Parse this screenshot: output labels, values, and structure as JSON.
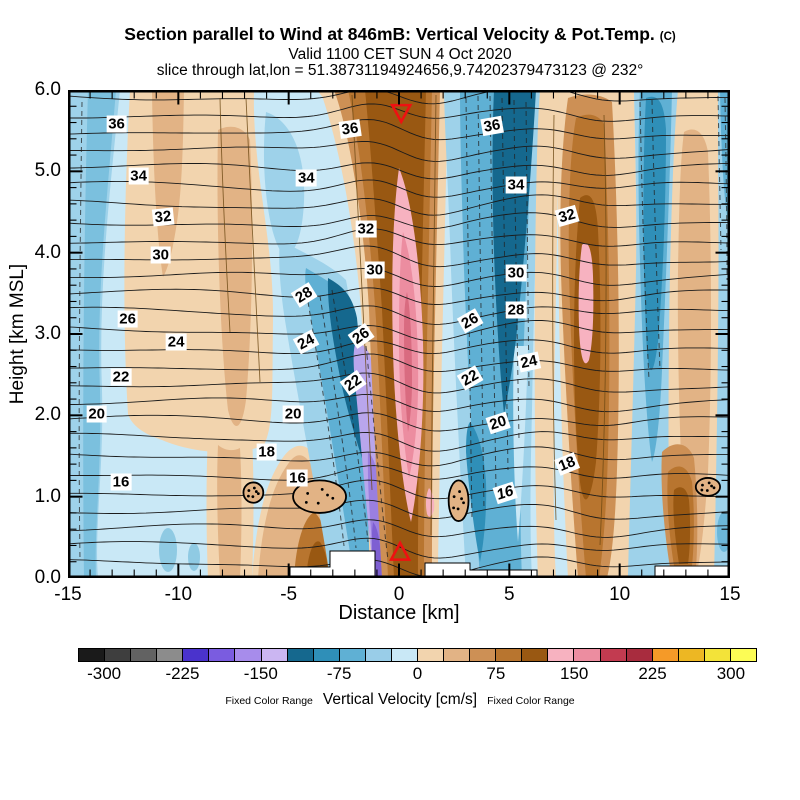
{
  "header": {
    "title": "Section parallel to Wind at 846mB: Vertical Velocity & Pot.Temp.",
    "title_suffix": "(C)",
    "subtitle1": "Valid 1100 CET SUN 4 Oct 2020",
    "subtitle2": "slice through lat,lon = 51.38731194924656,9.74202379473123 @ 232°"
  },
  "palette": {
    "paleblue": "#c9e8f6",
    "lightblue": "#9ed2ea",
    "medblue": "#5fb0d4",
    "deepblue": "#2f8fb8",
    "darkteal": "#15688e",
    "lpurple": "#b9a6ec",
    "mpurple": "#9a7fe0",
    "dpurple": "#7e5fd2",
    "peach": "#f2d4ae",
    "tan": "#e2b385",
    "ltbrown": "#cd9055",
    "brown": "#b8752f",
    "dkbrown": "#995812",
    "pink": "#f7b2c0",
    "dkpink": "#ec8da0",
    "rose": "#d96b80",
    "markerred": "#ee1111"
  },
  "chart_data": {
    "type": "heatmap",
    "title": "Section parallel to Wind at 846mB: Vertical Velocity & Pot.Temp. (C)",
    "valid": "Valid 1100 CET SUN 4 Oct 2020",
    "slice": "slice through lat,lon = 51.38731194924656,9.74202379473123 @ 232°",
    "xlabel": "Distance [km]",
    "ylabel": "Height [km MSL]",
    "xlim": [
      -15,
      15
    ],
    "ylim": [
      0,
      6
    ],
    "x_tick_labels": [
      "-15",
      "-10",
      "-5",
      "0",
      "5",
      "10",
      "15"
    ],
    "y_tick_labels": [
      "0.0",
      "1.0",
      "2.0",
      "3.0",
      "4.0",
      "5.0",
      "6.0"
    ],
    "fill_variable": "Vertical Velocity [cm/s]",
    "line_variable": "Potential Temperature [C]",
    "isentrope_contour_interval_C": 1,
    "isentrope_labels": [
      {
        "x": -12.8,
        "z": 5.58,
        "v": 36
      },
      {
        "x": -11.8,
        "z": 4.94,
        "v": 34
      },
      {
        "x": -10.7,
        "z": 4.44,
        "v": 32,
        "rot": -6
      },
      {
        "x": -10.8,
        "z": 3.97,
        "v": 30
      },
      {
        "x": -12.3,
        "z": 3.18,
        "v": 26
      },
      {
        "x": -10.1,
        "z": 2.9,
        "v": 24
      },
      {
        "x": -12.6,
        "z": 2.47,
        "v": 22
      },
      {
        "x": -13.7,
        "z": 2.02,
        "v": 20
      },
      {
        "x": -12.6,
        "z": 1.18,
        "v": 16
      },
      {
        "x": -2.2,
        "z": 5.52,
        "v": 36,
        "rot": -8
      },
      {
        "x": -4.2,
        "z": 4.92,
        "v": 34
      },
      {
        "x": -1.5,
        "z": 4.29,
        "v": 32
      },
      {
        "x": -1.1,
        "z": 3.79,
        "v": 30
      },
      {
        "x": -4.3,
        "z": 3.48,
        "v": 28,
        "rot": -32
      },
      {
        "x": -1.7,
        "z": 2.98,
        "v": 26,
        "rot": -35
      },
      {
        "x": -4.2,
        "z": 2.9,
        "v": 24,
        "rot": -28
      },
      {
        "x": -2.1,
        "z": 2.4,
        "v": 22,
        "rot": -35
      },
      {
        "x": -4.8,
        "z": 2.02,
        "v": 20
      },
      {
        "x": -6.0,
        "z": 1.55,
        "v": 18
      },
      {
        "x": -4.6,
        "z": 1.23,
        "v": 16
      },
      {
        "x": 4.2,
        "z": 5.56,
        "v": 36,
        "rot": -10
      },
      {
        "x": 5.3,
        "z": 4.83,
        "v": 34
      },
      {
        "x": 7.6,
        "z": 4.45,
        "v": 32,
        "rot": -16
      },
      {
        "x": 5.3,
        "z": 3.75,
        "v": 30
      },
      {
        "x": 5.3,
        "z": 3.3,
        "v": 28
      },
      {
        "x": 3.2,
        "z": 3.16,
        "v": 26,
        "rot": -30
      },
      {
        "x": 5.9,
        "z": 2.66,
        "v": 24,
        "rot": -12
      },
      {
        "x": 3.2,
        "z": 2.46,
        "v": 22,
        "rot": -30
      },
      {
        "x": 4.5,
        "z": 1.91,
        "v": 20,
        "rot": -18
      },
      {
        "x": 7.6,
        "z": 1.4,
        "v": 18,
        "rot": -22
      },
      {
        "x": 4.8,
        "z": 1.05,
        "v": 16,
        "rot": -18,
        "italic": true
      }
    ],
    "updrafts": [
      {
        "x_km": 0.6,
        "extent": "surface to 6 km",
        "core": "pink core 150-200 cm/s between 1 and 5.3 km"
      },
      {
        "x_km": 7.1,
        "extent": "surface to 6 km",
        "core": "pink core 150-175 cm/s between 2.9 and 4.1 km"
      },
      {
        "x_km": -10.0,
        "extent": "broad weak updraft 0-75 cm/s, full depth"
      },
      {
        "x_km": 11.5,
        "extent": "updraft 25-125 cm/s with brown core near 1 km"
      }
    ],
    "downdrafts": [
      {
        "x_km": -1.6,
        "extent": "purple core -125 to -175 cm/s from 0.3 to 3.5 km"
      },
      {
        "x_km": -3.5,
        "extent": "dark teal -100 to -125 cm/s, 1-4 km"
      },
      {
        "x_km": 2.8,
        "extent": "dark teal -100 to -125 cm/s, 2-6 km"
      },
      {
        "x_km": 8.8,
        "extent": "deep blue -75 to -100 cm/s, 3-6 km"
      }
    ],
    "markers": [
      {
        "type": "triangle-down",
        "x": 0.1,
        "z": 5.72
      },
      {
        "type": "triangle-up",
        "x": 0.05,
        "z": 0.32
      }
    ],
    "cloud_stipple": [
      {
        "x": -6.6,
        "z": 1.05,
        "w": 0.9,
        "h": 0.25
      },
      {
        "x": -3.6,
        "z": 1.0,
        "w": 2.4,
        "h": 0.4
      },
      {
        "x": 2.7,
        "z": 0.95,
        "w": 0.9,
        "h": 0.5
      },
      {
        "x": 14.0,
        "z": 1.12,
        "w": 1.1,
        "h": 0.22
      }
    ],
    "terrain_white_blocks_km": [
      [
        -4.9,
        -1.6
      ],
      [
        0.3,
        3.3
      ],
      [
        11.8,
        15.0
      ]
    ],
    "colorbar": {
      "label": "Vertical Velocity [cm/s]",
      "side_label": "Fixed Color Range",
      "range": [
        -325,
        325
      ],
      "ticks": [
        -300,
        -225,
        -150,
        -75,
        0,
        75,
        150,
        225,
        300
      ],
      "segment_colors": [
        "#1a1a1a",
        "#3e3e3e",
        "#626262",
        "#8c8c8c",
        "#4a33cc",
        "#7a5ce0",
        "#a78ceb",
        "#cbb6f2",
        "#15688e",
        "#2f8fb8",
        "#5fb0d4",
        "#99cde8",
        "#c9e8f6",
        "#f2d4ae",
        "#e2b385",
        "#cd9055",
        "#b8752f",
        "#995812",
        "#f7b2c0",
        "#ec8da0",
        "#c23b50",
        "#a82c3e",
        "#f59a28",
        "#edb723",
        "#f3e339",
        "#fcfc55"
      ]
    },
    "legend_position": "bottom",
    "grid": false
  }
}
